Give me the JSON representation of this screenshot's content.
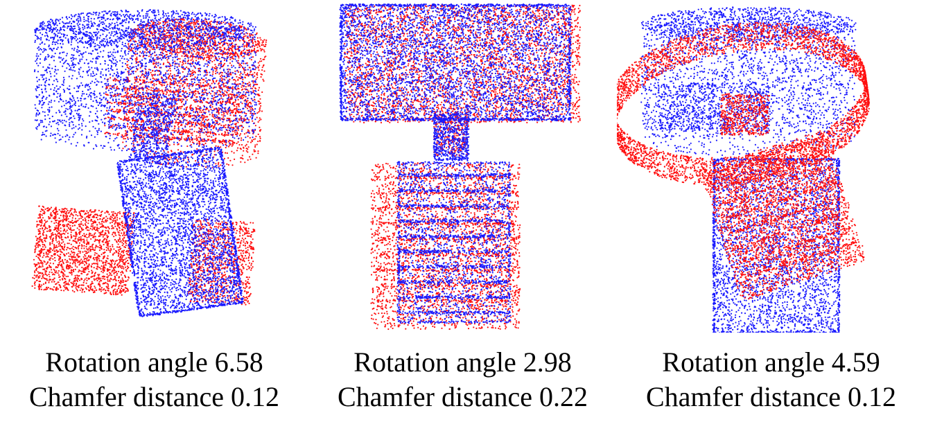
{
  "colors": {
    "source_cloud": "#1a1aff",
    "target_cloud": "#ff1010",
    "background": "#ffffff"
  },
  "panels": [
    {
      "line1": "Rotation angle 6.58",
      "line2": "Chamfer distance 0.12"
    },
    {
      "line1": "Rotation angle 2.98",
      "line2": "Chamfer distance 0.22"
    },
    {
      "line1": "Rotation angle 4.59",
      "line2": "Chamfer distance 0.12"
    }
  ]
}
